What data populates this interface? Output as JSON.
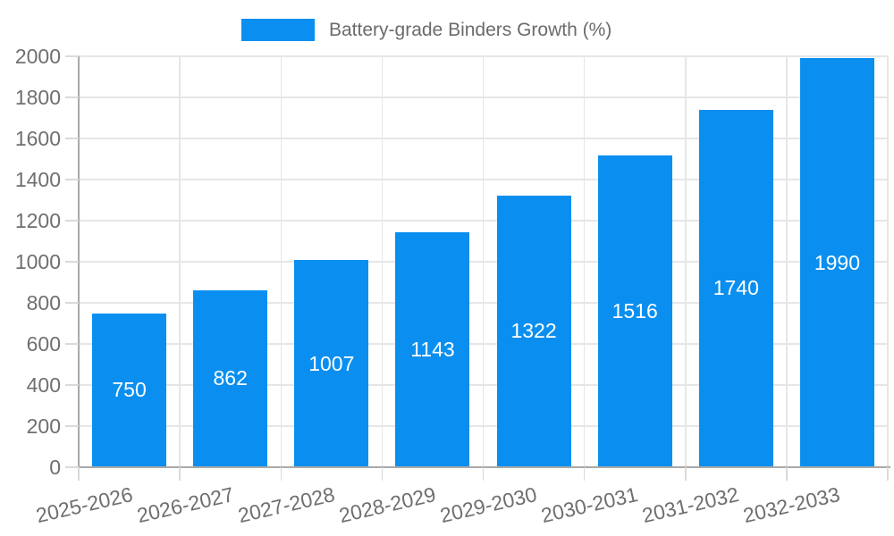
{
  "legend": {
    "label": "Battery-grade Binders Growth (%)"
  },
  "chart_data": {
    "type": "bar",
    "title": "Battery-grade Binders Growth (%)",
    "categories": [
      "2025-2026",
      "2026-2027",
      "2027-2028",
      "2028-2029",
      "2029-2030",
      "2030-2031",
      "2031-2032",
      "2032-2033"
    ],
    "values": [
      750,
      862,
      1007,
      1143,
      1322,
      1516,
      1740,
      1990
    ],
    "xlabel": "",
    "ylabel": "",
    "ylim": [
      0,
      2000
    ],
    "yticks": [
      0,
      200,
      400,
      600,
      800,
      1000,
      1200,
      1400,
      1600,
      1800,
      2000
    ],
    "grid": true,
    "legend_position": "top-center",
    "x_label_rotation_deg": -13,
    "bar_value_labels_inside": true,
    "colors": {
      "bar": "#0a8ff0",
      "bar_label": "#ffffff",
      "axis_text": "#6f6f6f",
      "legend_text": "#6b6b6b",
      "grid": "#e6e6e6",
      "tick": "#dadada",
      "axis_line": "#a9a9a9",
      "background": "#ffffff"
    }
  }
}
